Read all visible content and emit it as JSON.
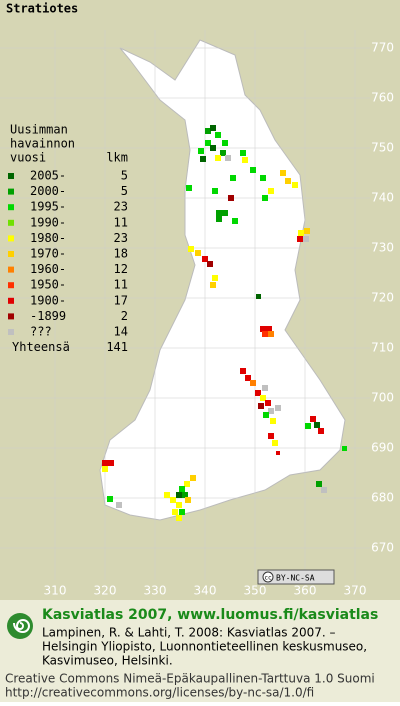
{
  "title": "Stratiotes",
  "legend": {
    "heading": [
      "Uusimman",
      "havainnon",
      "vuosi"
    ],
    "count_heading": "lkm",
    "entries": [
      {
        "label": "2005-",
        "count": 5,
        "color": "#006400"
      },
      {
        "label": "2000-",
        "count": 5,
        "color": "#00a000"
      },
      {
        "label": "1995-",
        "count": 23,
        "color": "#00d800"
      },
      {
        "label": "1990-",
        "count": 11,
        "color": "#70e000"
      },
      {
        "label": "1980-",
        "count": 23,
        "color": "#ffff00"
      },
      {
        "label": "1970-",
        "count": 18,
        "color": "#ffd000"
      },
      {
        "label": "1960-",
        "count": 12,
        "color": "#ff8000"
      },
      {
        "label": "1950-",
        "count": 11,
        "color": "#ff3000"
      },
      {
        "label": "1900-",
        "count": 17,
        "color": "#e00000"
      },
      {
        "label": "-1899",
        "count": 2,
        "color": "#a00000"
      },
      {
        "label": "???",
        "count": 14,
        "color": "#c0c0c0"
      }
    ],
    "total_label": "Yhteensä",
    "total": 141
  },
  "axes": {
    "y_labels": [
      770,
      760,
      750,
      740,
      730,
      720,
      710,
      700,
      690,
      680,
      670
    ],
    "x_labels": [
      310,
      320,
      330,
      340,
      350,
      360,
      370
    ]
  },
  "badge": {
    "cc": "cc",
    "text": "BY-NC-SA"
  },
  "footer": {
    "heading": "Kasviatlas 2007, www.luomus.fi/kasviatlas",
    "citation": [
      "Lampinen, R. & Lahti, T. 2008: Kasviatlas 2007. –",
      "Helsingin Yliopisto, Luonnontieteellinen keskusmuseo,",
      "Kasvimuseo, Helsinki."
    ],
    "license": [
      "Creative Commons Nimeä-Epäkaupallinen-Tarttuva 1.0 Suomi",
      "http://creativecommons.org/licenses/by-nc-sa/1.0/fi"
    ]
  }
}
